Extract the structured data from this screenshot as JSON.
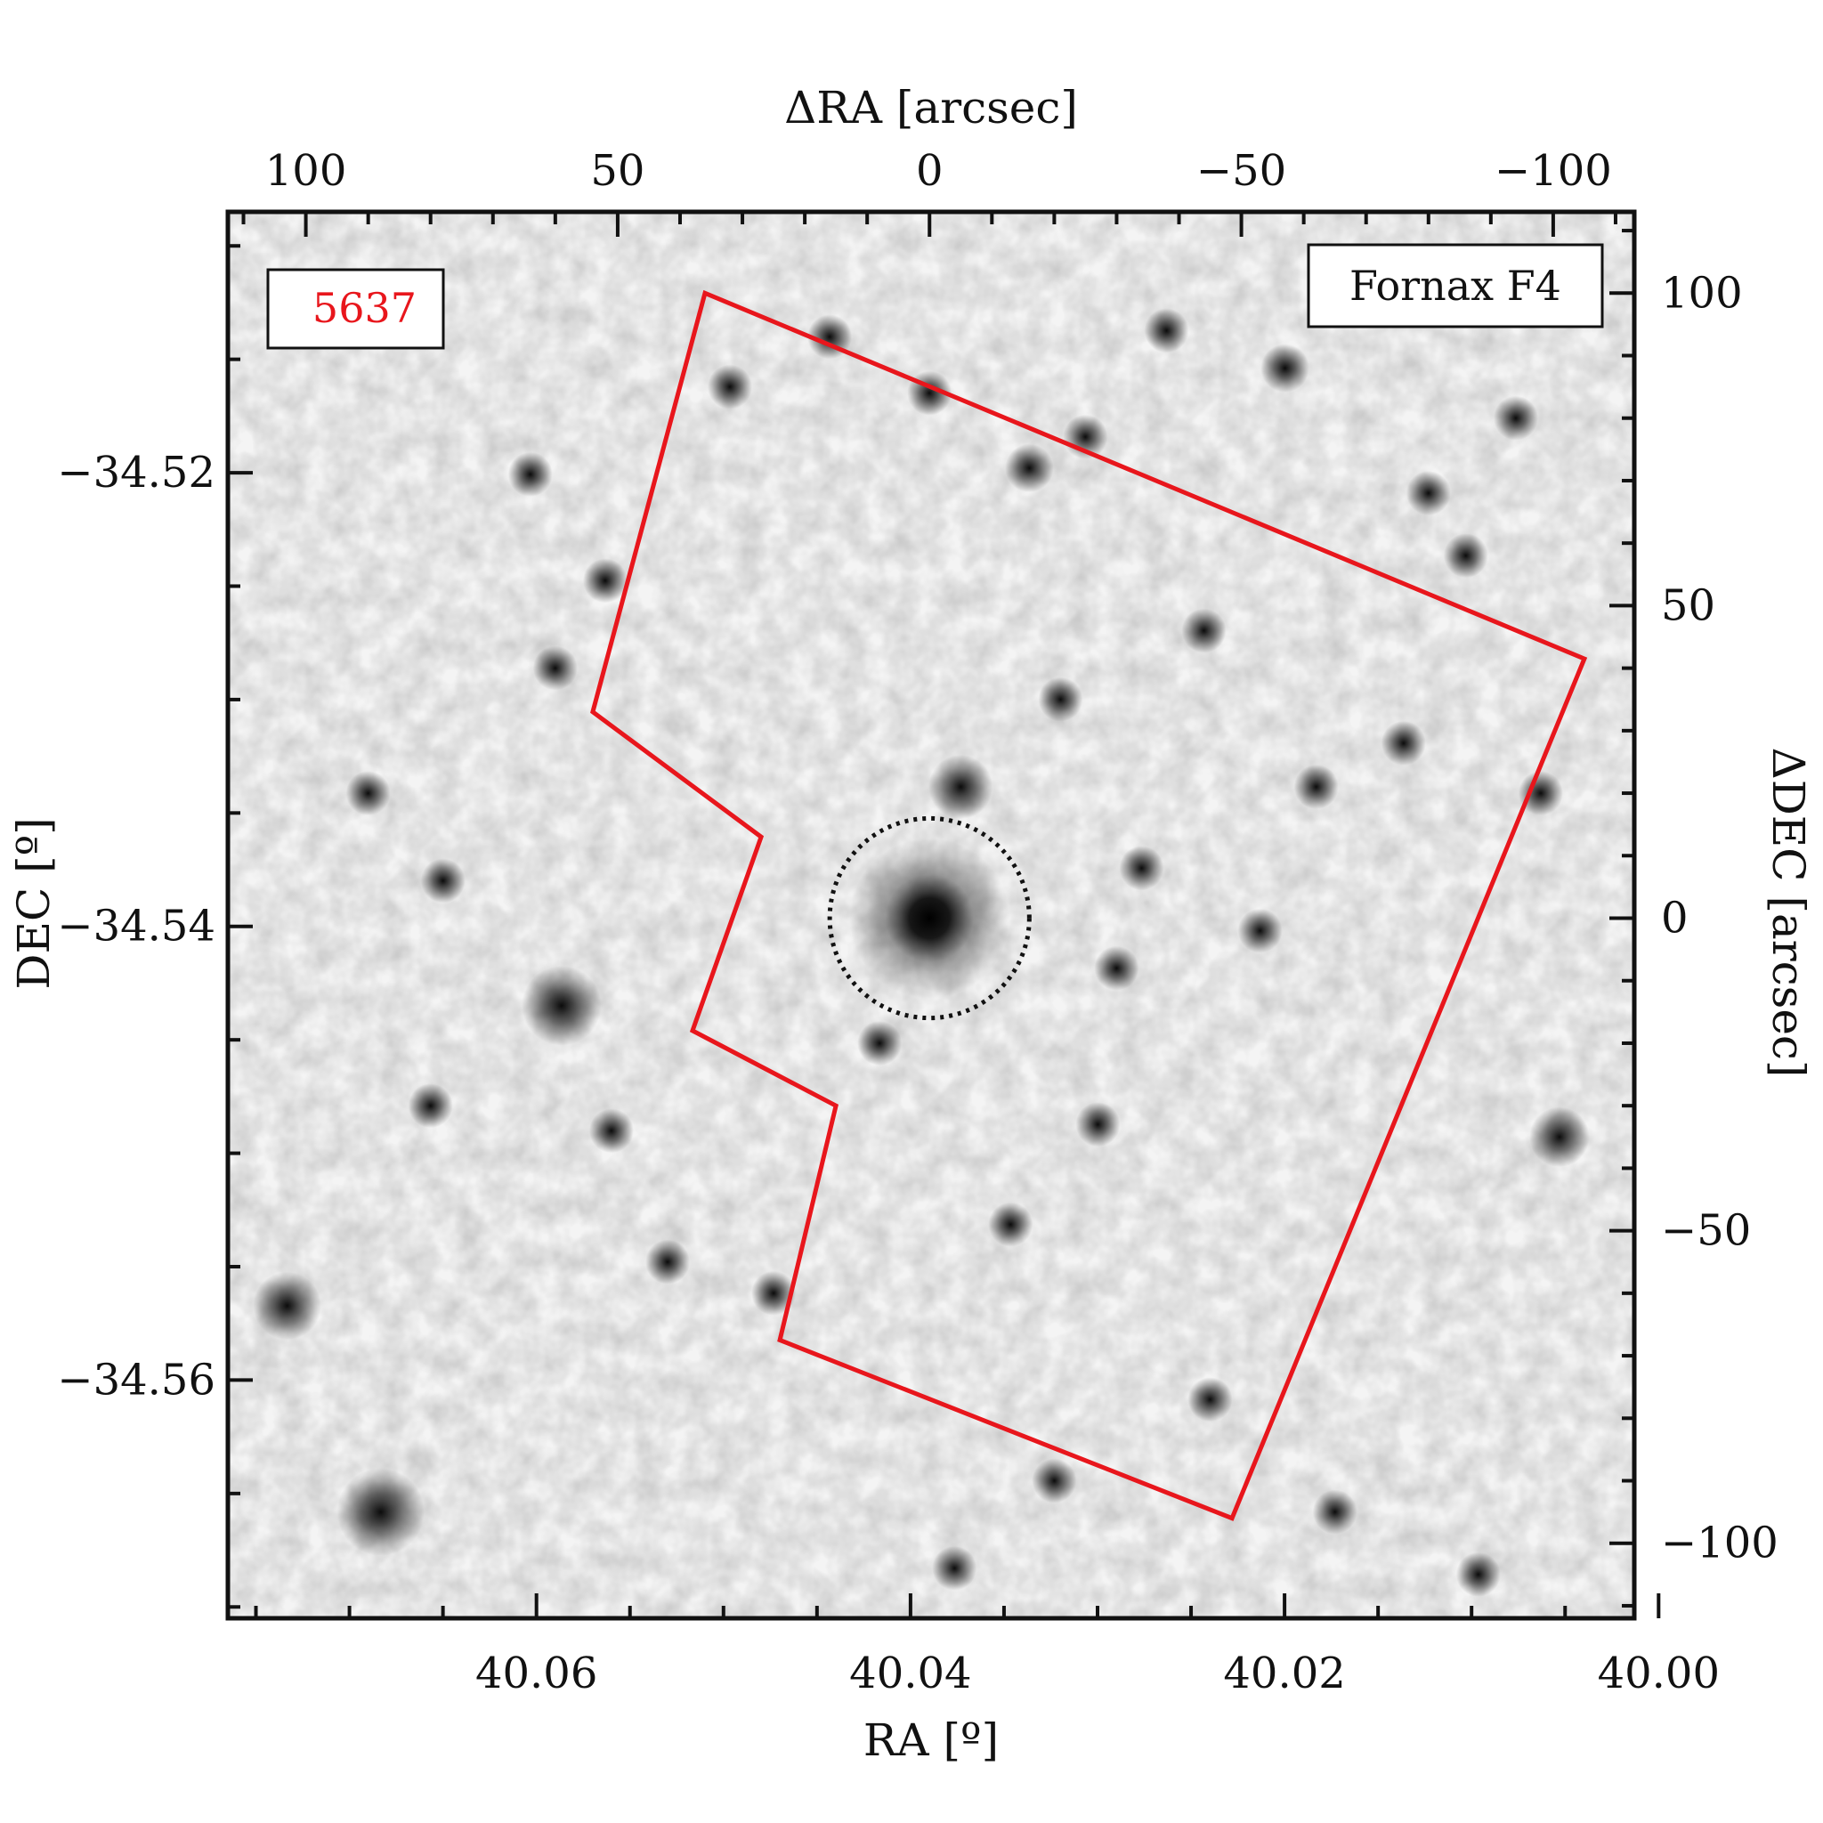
{
  "figure": {
    "field_name": "Fornax F4",
    "object_label": "5637",
    "colors": {
      "footprint": "#e8161c",
      "object_label": "#e8161c",
      "frame": "#111111",
      "aperture": "#111111",
      "sky": "#f4f4f4"
    }
  },
  "chart_data": {
    "type": "sky-image",
    "axes": {
      "bottom": {
        "label": "RA [º]",
        "ticks": [
          40.06,
          40.04,
          40.02,
          40.0
        ],
        "tick_labels": [
          "40.06",
          "40.04",
          "40.02",
          "40.00"
        ],
        "range": [
          40.0765,
          40.0013
        ]
      },
      "left": {
        "label": "DEC [º]",
        "ticks": [
          -34.52,
          -34.54,
          -34.56
        ],
        "tick_labels": [
          "−34.52",
          "−34.54",
          "−34.56"
        ],
        "range": [
          -34.5705,
          -34.5085
        ]
      },
      "top": {
        "label": "ΔRA [arcsec]",
        "ticks": [
          100,
          50,
          0,
          -50,
          -100
        ],
        "tick_labels": [
          "100",
          "50",
          "0",
          "−50",
          "−100"
        ],
        "range": [
          112.5,
          -113
        ]
      },
      "right": {
        "label": "ΔDEC [arcsec]",
        "ticks": [
          100,
          50,
          0,
          -50,
          -100
        ],
        "tick_labels": [
          "100",
          "50",
          "0",
          "−50",
          "−100"
        ],
        "range": [
          -112,
          113
        ]
      }
    },
    "footprint_arcsec": [
      [
        36,
        100
      ],
      [
        -105,
        41.5
      ],
      [
        -48.5,
        -96
      ],
      [
        24,
        -67.5
      ],
      [
        15,
        -30
      ],
      [
        38,
        -18
      ],
      [
        27,
        13
      ],
      [
        54,
        33
      ]
    ],
    "aperture": {
      "center_arcsec": [
        0,
        0
      ],
      "radius_arcsec": 16
    },
    "galaxy": {
      "center_arcsec": [
        0,
        0
      ]
    },
    "stars_arcsec": [
      [
        -5,
        21,
        1.0
      ],
      [
        59,
        -14,
        1.4
      ],
      [
        88,
        -95,
        1.6
      ],
      [
        103,
        -62,
        1.1
      ],
      [
        -101,
        -35,
        0.9
      ],
      [
        -16,
        72,
        0.6
      ],
      [
        -21,
        35,
        0.5
      ],
      [
        -62,
        21,
        0.5
      ],
      [
        -53,
        -2,
        0.5
      ],
      [
        -30,
        -8,
        0.5
      ],
      [
        -27,
        -33,
        0.5
      ],
      [
        -38,
        94,
        0.5
      ],
      [
        -80,
        68,
        0.5
      ],
      [
        52,
        54,
        0.5
      ],
      [
        51,
        -34,
        0.5
      ],
      [
        25,
        -60,
        0.5
      ],
      [
        0,
        84,
        0.5
      ],
      [
        -25,
        77,
        0.5
      ],
      [
        -94,
        80,
        0.5
      ],
      [
        -57,
        88,
        0.6
      ],
      [
        -4,
        -104,
        0.5
      ],
      [
        60,
        40,
        0.5
      ],
      [
        78,
        6,
        0.5
      ],
      [
        -45,
        -77,
        0.5
      ],
      [
        -86,
        58,
        0.5
      ],
      [
        42,
        -55,
        0.5
      ],
      [
        80,
        -30,
        0.5
      ],
      [
        -76,
        28,
        0.5
      ],
      [
        -13,
        -49,
        0.5
      ],
      [
        16,
        93,
        0.5
      ],
      [
        -88,
        -105,
        0.5
      ],
      [
        -34,
        8,
        0.5
      ],
      [
        90,
        20,
        0.5
      ],
      [
        -65,
        -95,
        0.5
      ],
      [
        8,
        -20,
        0.5
      ],
      [
        -20,
        -90,
        0.5
      ],
      [
        32,
        85,
        0.5
      ],
      [
        -98,
        20,
        0.5
      ],
      [
        64,
        71,
        0.5
      ],
      [
        -44,
        46,
        0.5
      ]
    ]
  }
}
